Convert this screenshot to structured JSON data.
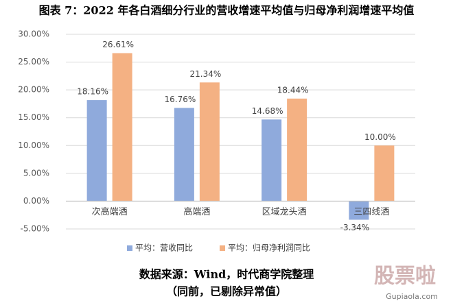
{
  "chart_data": {
    "type": "bar",
    "title": "图表 7：2022 年各白酒细分行业的营收增速平均值与归母净利润增速平均值",
    "categories": [
      "次高端酒",
      "高端酒",
      "区域龙头酒",
      "三四线酒"
    ],
    "series": [
      {
        "name": "平均：营收同比",
        "color": "#8faadc",
        "values": [
          18.16,
          16.76,
          14.68,
          -3.34
        ],
        "value_labels": [
          "18.16%",
          "16.76%",
          "14.68%",
          "-3.34%"
        ]
      },
      {
        "name": "平均：归母净利润同比",
        "color": "#f4b183",
        "values": [
          26.61,
          21.34,
          18.44,
          10.0
        ],
        "value_labels": [
          "26.61%",
          "21.34%",
          "18.44%",
          "10.00%"
        ]
      }
    ],
    "ylim": [
      -5,
      30
    ],
    "yticks": [
      {
        "value": -5,
        "label": "-5.00%"
      },
      {
        "value": 0,
        "label": "0.00%"
      },
      {
        "value": 5,
        "label": "5.00%"
      },
      {
        "value": 10,
        "label": "10.00%"
      },
      {
        "value": 15,
        "label": "15.00%"
      },
      {
        "value": 20,
        "label": "20.00%"
      },
      {
        "value": 25,
        "label": "25.00%"
      },
      {
        "value": 30,
        "label": "30.00%"
      }
    ],
    "grid": true,
    "legend": "bottom"
  },
  "source": [
    "数据来源：Wind，时代商学院整理",
    "（同前，已剔除异常值）"
  ],
  "watermark": {
    "text": "股票啦",
    "url": "Gupiaola.com"
  }
}
